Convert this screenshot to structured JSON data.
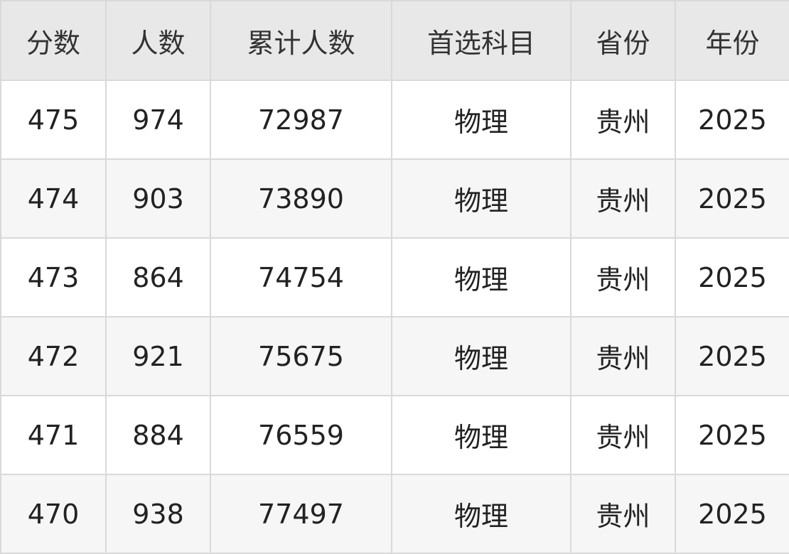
{
  "table": {
    "header": [
      "分数",
      "人数",
      "累计人数",
      "首选科目",
      "省份",
      "年份"
    ],
    "rows": [
      [
        475,
        974,
        72987,
        "物理",
        "贵州",
        2025
      ],
      [
        474,
        903,
        73890,
        "物理",
        "贵州",
        2025
      ],
      [
        473,
        864,
        74754,
        "物理",
        "贵州",
        2025
      ],
      [
        472,
        921,
        75675,
        "物理",
        "贵州",
        2025
      ],
      [
        471,
        884,
        76559,
        "物理",
        "贵州",
        2025
      ],
      [
        470,
        938,
        77497,
        "物理",
        "贵州",
        2025
      ]
    ]
  }
}
